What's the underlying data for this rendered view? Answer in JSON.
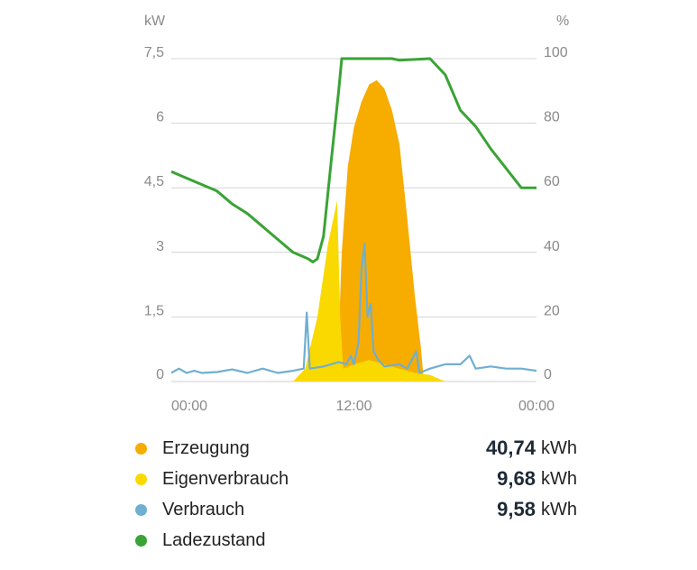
{
  "chart_data": {
    "type": "area",
    "left_axis": {
      "unit": "kW",
      "ticks": [
        "7,5",
        "6",
        "4,5",
        "3",
        "1,5",
        "0"
      ],
      "range": [
        0,
        7.5
      ]
    },
    "right_axis": {
      "unit": "%",
      "ticks": [
        "100",
        "80",
        "60",
        "40",
        "20",
        "0"
      ],
      "range": [
        0,
        100
      ]
    },
    "x_ticks": [
      "00:00",
      "12:00",
      "00:00"
    ],
    "x_range_hours": [
      0,
      24
    ],
    "grid": true,
    "series": [
      {
        "name": "Erzeugung",
        "color": "#f7ac00",
        "axis": "left",
        "kind": "area",
        "points": [
          [
            0,
            0
          ],
          [
            10.9,
            0
          ],
          [
            11.2,
            3.0
          ],
          [
            11.6,
            5.0
          ],
          [
            12.0,
            5.9
          ],
          [
            12.5,
            6.5
          ],
          [
            13.0,
            6.9
          ],
          [
            13.5,
            7.0
          ],
          [
            14.0,
            6.8
          ],
          [
            14.5,
            6.3
          ],
          [
            15.0,
            5.5
          ],
          [
            15.5,
            3.8
          ],
          [
            16.0,
            2.0
          ],
          [
            16.4,
            0.8
          ],
          [
            16.6,
            0
          ],
          [
            24,
            0
          ]
        ]
      },
      {
        "name": "Eigenverbrauch",
        "color": "#f9d900",
        "axis": "left",
        "kind": "area",
        "points": [
          [
            0,
            0
          ],
          [
            8.0,
            0
          ],
          [
            8.8,
            0.3
          ],
          [
            9.6,
            1.5
          ],
          [
            10.3,
            3.2
          ],
          [
            10.9,
            4.2
          ],
          [
            11.1,
            1.5
          ],
          [
            11.3,
            0.3
          ],
          [
            12.0,
            0.4
          ],
          [
            13.0,
            0.5
          ],
          [
            14.0,
            0.4
          ],
          [
            15.0,
            0.3
          ],
          [
            16.0,
            0.2
          ],
          [
            17.0,
            0.15
          ],
          [
            18.0,
            0
          ],
          [
            24,
            0
          ]
        ]
      },
      {
        "name": "Verbrauch",
        "color": "#6fafd0",
        "axis": "left",
        "kind": "line",
        "points": [
          [
            0,
            0.2
          ],
          [
            0.5,
            0.3
          ],
          [
            1.0,
            0.2
          ],
          [
            1.5,
            0.25
          ],
          [
            2.0,
            0.2
          ],
          [
            3.0,
            0.22
          ],
          [
            4.0,
            0.28
          ],
          [
            5.0,
            0.2
          ],
          [
            6.0,
            0.3
          ],
          [
            7.0,
            0.2
          ],
          [
            8.0,
            0.25
          ],
          [
            8.7,
            0.3
          ],
          [
            8.9,
            1.6
          ],
          [
            9.1,
            0.3
          ],
          [
            10.0,
            0.35
          ],
          [
            11.0,
            0.45
          ],
          [
            11.5,
            0.4
          ],
          [
            11.8,
            0.6
          ],
          [
            12.0,
            0.4
          ],
          [
            12.3,
            0.9
          ],
          [
            12.5,
            2.6
          ],
          [
            12.7,
            3.2
          ],
          [
            12.9,
            1.5
          ],
          [
            13.1,
            1.8
          ],
          [
            13.3,
            0.7
          ],
          [
            13.6,
            0.5
          ],
          [
            14.0,
            0.35
          ],
          [
            15.0,
            0.4
          ],
          [
            15.5,
            0.3
          ],
          [
            16.1,
            0.7
          ],
          [
            16.3,
            0.2
          ],
          [
            17.0,
            0.3
          ],
          [
            18.0,
            0.4
          ],
          [
            19.0,
            0.4
          ],
          [
            19.6,
            0.6
          ],
          [
            20.0,
            0.3
          ],
          [
            21.0,
            0.35
          ],
          [
            22.0,
            0.3
          ],
          [
            23.0,
            0.3
          ],
          [
            24,
            0.25
          ]
        ]
      },
      {
        "name": "Ladezustand",
        "color": "#3aa335",
        "axis": "right",
        "kind": "line",
        "points": [
          [
            0,
            65
          ],
          [
            1,
            63
          ],
          [
            2,
            61
          ],
          [
            3,
            59
          ],
          [
            4,
            55
          ],
          [
            5,
            52
          ],
          [
            6,
            48
          ],
          [
            7,
            44
          ],
          [
            8,
            40
          ],
          [
            9,
            38
          ],
          [
            9.3,
            37
          ],
          [
            9.6,
            38
          ],
          [
            10.0,
            45
          ],
          [
            10.5,
            68
          ],
          [
            11.0,
            90
          ],
          [
            11.2,
            100
          ],
          [
            14.5,
            100
          ],
          [
            15.0,
            99.5
          ],
          [
            17.0,
            100
          ],
          [
            18.0,
            95
          ],
          [
            19.0,
            84
          ],
          [
            20.0,
            79
          ],
          [
            21.0,
            72
          ],
          [
            22.0,
            66
          ],
          [
            23.0,
            60
          ],
          [
            24,
            60
          ]
        ]
      }
    ]
  },
  "legend": [
    {
      "name": "Erzeugung",
      "color": "#f7ac00",
      "value": "40,74",
      "unit": "kWh"
    },
    {
      "name": "Eigenverbrauch",
      "color": "#f9d900",
      "value": "9,68",
      "unit": "kWh"
    },
    {
      "name": "Verbrauch",
      "color": "#6fafd0",
      "value": "9,58",
      "unit": "kWh"
    },
    {
      "name": "Ladezustand",
      "color": "#3aa335",
      "value": "",
      "unit": ""
    }
  ]
}
